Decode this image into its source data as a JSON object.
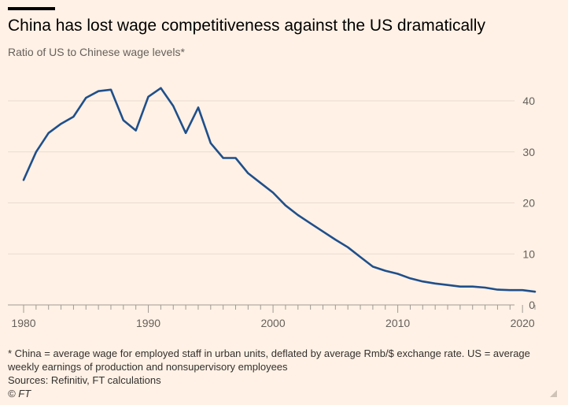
{
  "header": {
    "title": "China has lost wage competitiveness against the US dramatically",
    "subtitle": "Ratio of US to Chinese wage levels*"
  },
  "footer": {
    "note": "* China = average wage for employed staff in urban units, deflated by average Rmb/$ exchange rate. US = average weekly earnings of production and nonsupervisory employees",
    "sources": "Sources: Refinitiv, FT calculations",
    "copyright": "© FT"
  },
  "colors": {
    "background": "#fff1e5",
    "line": "#1f4f8b",
    "grid": "#e9dcd0",
    "tick_text": "#66605c",
    "axis": "#a09a94"
  },
  "chart_data": {
    "type": "line",
    "title": "China has lost wage competitiveness against the US dramatically",
    "subtitle": "Ratio of US to Chinese wage levels*",
    "xlabel": "",
    "ylabel": "",
    "xlim": [
      1980,
      2021
    ],
    "ylim": [
      0,
      45
    ],
    "x_ticks": [
      1980,
      1990,
      2000,
      2010,
      2020
    ],
    "y_ticks": [
      0,
      10,
      20,
      30,
      40
    ],
    "grid": true,
    "y_axis_position": "right",
    "x": [
      1980,
      1981,
      1982,
      1983,
      1984,
      1985,
      1986,
      1987,
      1988,
      1989,
      1990,
      1991,
      1992,
      1993,
      1994,
      1995,
      1996,
      1997,
      1998,
      1999,
      2000,
      2001,
      2002,
      2003,
      2004,
      2005,
      2006,
      2007,
      2008,
      2009,
      2010,
      2011,
      2012,
      2013,
      2014,
      2015,
      2016,
      2017,
      2018,
      2019,
      2020,
      2021
    ],
    "series": [
      {
        "values": [
          24.5,
          30.0,
          33.7,
          35.5,
          36.9,
          40.6,
          41.9,
          42.2,
          36.2,
          34.2,
          40.8,
          42.5,
          39.0,
          33.7,
          38.7,
          31.7,
          28.8,
          28.8,
          25.8,
          23.9,
          22.0,
          19.5,
          17.6,
          16.0,
          14.4,
          12.8,
          11.3,
          9.4,
          7.5,
          6.7,
          6.1,
          5.2,
          4.6,
          4.2,
          3.9,
          3.6,
          3.6,
          3.4,
          3.0,
          2.9,
          2.9,
          2.6
        ]
      }
    ]
  }
}
